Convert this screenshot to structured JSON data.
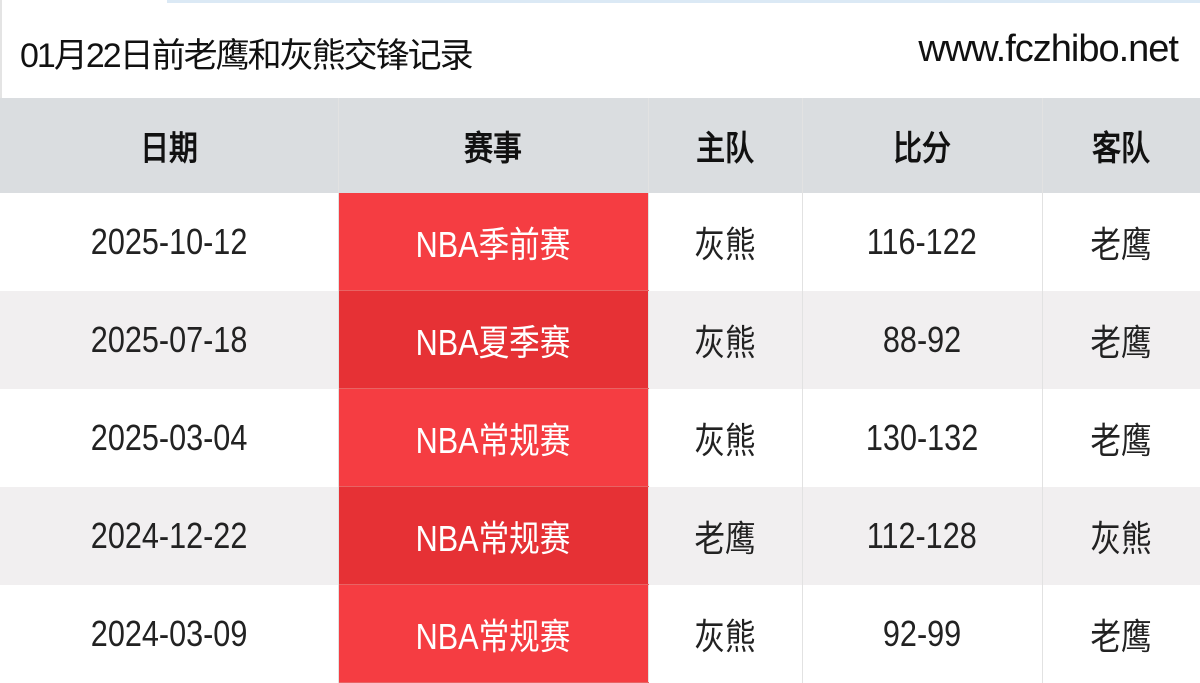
{
  "header": {
    "title": "01月22日前老鹰和灰熊交锋记录",
    "site": "www.fczhibo.net"
  },
  "colors": {
    "competition_bg": "#f53d42",
    "competition_bg_alt": "#e63135",
    "header_bg": "#dadde0"
  },
  "table": {
    "columns": [
      "日期",
      "赛事",
      "主队",
      "比分",
      "客队"
    ],
    "rows": [
      {
        "date": "2025-10-12",
        "competition": "NBA季前赛",
        "home": "灰熊",
        "score": "116-122",
        "away": "老鹰"
      },
      {
        "date": "2025-07-18",
        "competition": "NBA夏季赛",
        "home": "灰熊",
        "score": "88-92",
        "away": "老鹰"
      },
      {
        "date": "2025-03-04",
        "competition": "NBA常规赛",
        "home": "灰熊",
        "score": "130-132",
        "away": "老鹰"
      },
      {
        "date": "2024-12-22",
        "competition": "NBA常规赛",
        "home": "老鹰",
        "score": "112-128",
        "away": "灰熊"
      },
      {
        "date": "2024-03-09",
        "competition": "NBA常规赛",
        "home": "灰熊",
        "score": "92-99",
        "away": "老鹰"
      }
    ]
  }
}
